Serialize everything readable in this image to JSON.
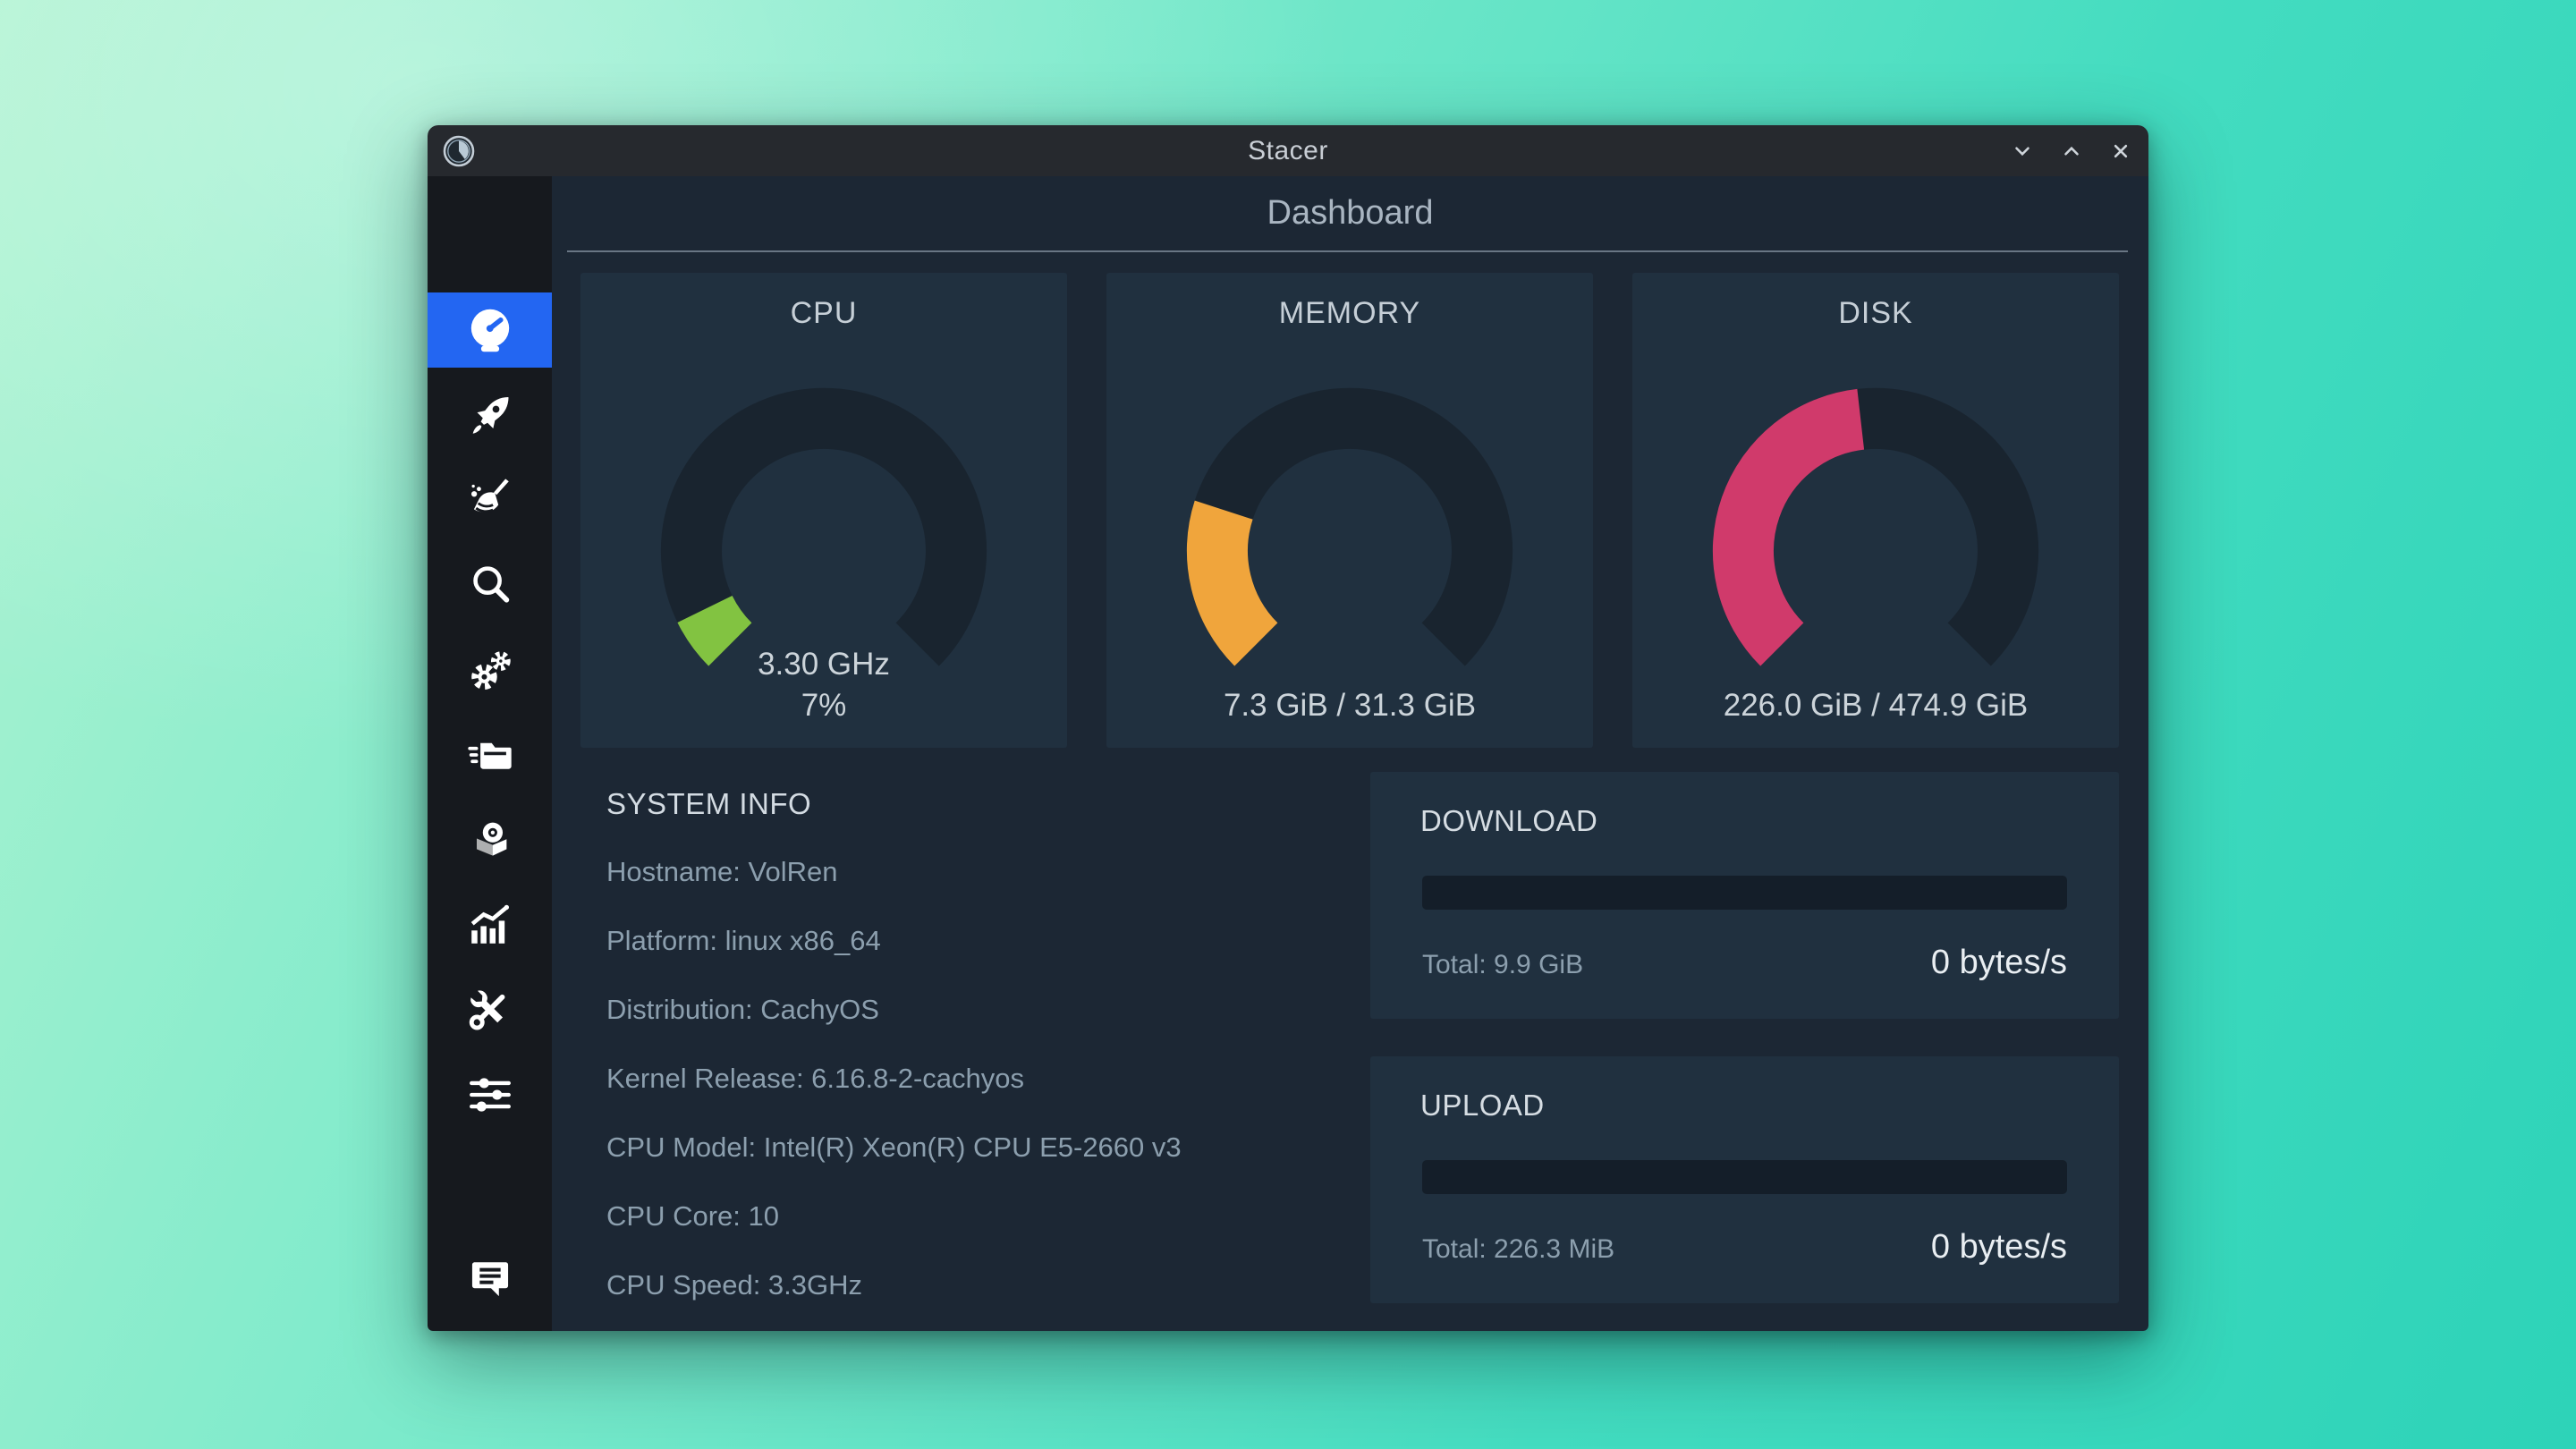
{
  "window": {
    "title": "Stacer",
    "controls": [
      "minimize",
      "maximize",
      "close"
    ]
  },
  "header": {
    "title": "Dashboard"
  },
  "sidebar": {
    "active_item": "dashboard",
    "items": [
      "dashboard",
      "startup-apps",
      "system-cleaner",
      "search",
      "services",
      "processes",
      "uninstaller",
      "resources",
      "helpers",
      "settings",
      "feedback"
    ]
  },
  "gauges": [
    {
      "title": "CPU",
      "percent": 7,
      "color": "#82c341",
      "values": [
        "3.30 GHz",
        "7%"
      ]
    },
    {
      "title": "MEMORY",
      "percent": 23.32,
      "color": "#f0a53c",
      "values": [
        "7.3 GiB / 31.3 GiB"
      ]
    },
    {
      "title": "DISK",
      "percent": 47.59,
      "color": "#d03a6b",
      "values": [
        "226.0 GiB / 474.9 GiB"
      ]
    }
  ],
  "system_info": {
    "title": "SYSTEM INFO",
    "lines": [
      "Hostname: VolRen",
      "Platform: linux x86_64",
      "Distribution: CachyOS",
      "Kernel Release: 6.16.8-2-cachyos",
      "CPU Model: Intel(R) Xeon(R) CPU E5-2660 v3",
      "CPU Core: 10",
      "CPU Speed: 3.3GHz"
    ]
  },
  "network": {
    "download": {
      "title": "DOWNLOAD",
      "total": "Total: 9.9 GiB",
      "speed": "0 bytes/s"
    },
    "upload": {
      "title": "UPLOAD",
      "total": "Total: 226.3 MiB",
      "speed": "0 bytes/s"
    }
  },
  "colors": {
    "accent_blue": "#2366f2",
    "cpu_green": "#82c341",
    "memory_orange": "#f0a53c",
    "disk_pink": "#d03a6b",
    "window_bg": "#1c2734",
    "card_bg": "#20303f"
  },
  "chart_data": [
    {
      "type": "gauge",
      "title": "CPU",
      "value_percent": 7,
      "label": "3.30 GHz / 7%"
    },
    {
      "type": "gauge",
      "title": "MEMORY",
      "value_percent": 23.32,
      "used": "7.3 GiB",
      "total": "31.3 GiB"
    },
    {
      "type": "gauge",
      "title": "DISK",
      "value_percent": 47.59,
      "used": "226.0 GiB",
      "total": "474.9 GiB"
    }
  ]
}
